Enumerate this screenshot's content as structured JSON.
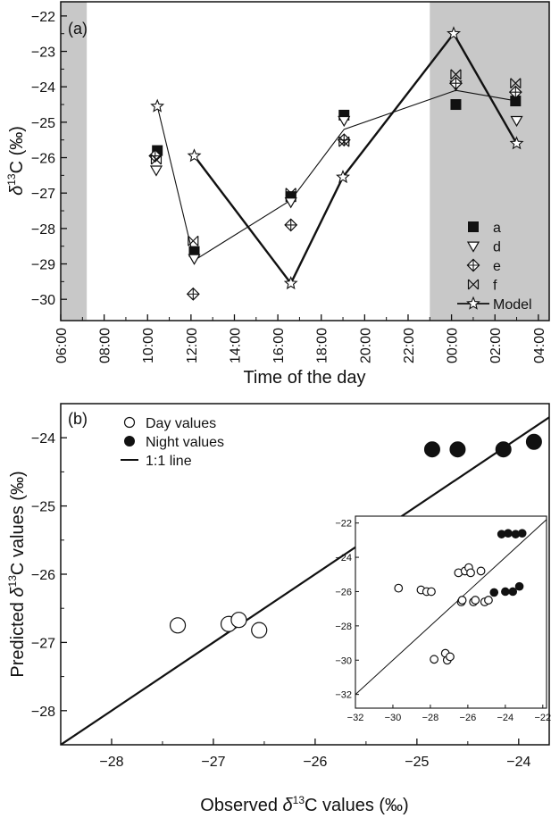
{
  "chart_data": [
    {
      "id": "a",
      "panel_label": "(a)",
      "type": "scatter",
      "xlabel": "Time of the day",
      "ylabel_prefix": "δ",
      "ylabel_sup": "13",
      "ylabel_suffix": "C (‰)",
      "x_unit": "hours",
      "xlim": [
        6,
        28.5
      ],
      "ylim": [
        -30.6,
        -21.6
      ],
      "x_ticks": [
        6,
        8,
        10,
        12,
        14,
        16,
        18,
        20,
        22,
        24,
        26,
        28
      ],
      "x_tick_labels": [
        "06:00",
        "08:00",
        "10:00",
        "12:00",
        "14:00",
        "16:00",
        "18:00",
        "20:00",
        "22:00",
        "00:00",
        "02:00",
        "04:00"
      ],
      "y_ticks": [
        -30,
        -29,
        -28,
        -27,
        -26,
        -25,
        -24,
        -23,
        -22
      ],
      "night_shading": [
        [
          6,
          7.2
        ],
        [
          23,
          28.5
        ]
      ],
      "night_color": "#c8c8c8",
      "series": [
        {
          "name": "a",
          "marker": "square-filled",
          "x": [
            10.45,
            12.15,
            16.6,
            19.05,
            24.2,
            26.95
          ],
          "y": [
            -25.8,
            -28.65,
            -27.1,
            -24.8,
            -24.5,
            -24.4
          ]
        },
        {
          "name": "d",
          "marker": "triangle-down-open",
          "x": [
            10.4,
            12.15,
            16.6,
            19.05,
            24.2,
            27.0
          ],
          "y": [
            -26.35,
            -28.85,
            -27.25,
            -24.95,
            -23.95,
            -24.95
          ]
        },
        {
          "name": "e",
          "marker": "diamond-cross",
          "x": [
            10.35,
            12.1,
            16.6,
            19.05,
            24.2,
            26.95
          ],
          "y": [
            -25.95,
            -29.85,
            -27.9,
            -25.5,
            -23.9,
            -24.15
          ]
        },
        {
          "name": "f",
          "marker": "bowtie-x",
          "x": [
            10.4,
            12.1,
            16.6,
            19.05,
            24.2,
            26.95
          ],
          "y": [
            -26.05,
            -28.35,
            -27.0,
            -25.55,
            -23.65,
            -23.9
          ]
        },
        {
          "name": "Model",
          "marker": "star-open",
          "x": [
            10.45,
            12.15,
            16.6,
            19.0,
            24.1,
            27.0
          ],
          "y": [
            -24.55,
            -25.95,
            -29.55,
            -26.55,
            -22.5,
            -25.6
          ]
        }
      ],
      "lines": [
        {
          "style": "thick",
          "x": [
            12.15,
            16.6
          ],
          "y": [
            -25.95,
            -29.55
          ]
        },
        {
          "style": "thick",
          "x": [
            16.6,
            19.0,
            24.1,
            27.0
          ],
          "y": [
            -29.55,
            -26.55,
            -22.5,
            -25.6
          ]
        },
        {
          "style": "thin",
          "x": [
            10.45,
            12.15,
            16.6,
            19.05,
            24.2,
            27.0
          ],
          "y": [
            -24.55,
            -28.9,
            -27.2,
            -25.2,
            -24.1,
            -24.4
          ]
        }
      ],
      "legend_position": "bottom-right"
    },
    {
      "id": "b",
      "panel_label": "(b)",
      "type": "scatter",
      "xlabel_prefix": "Observed ",
      "xlabel_delta": "δ",
      "xlabel_sup": "13",
      "xlabel_suffix": "C values (‰)",
      "ylabel_prefix": "Predicted ",
      "ylabel_delta": "δ",
      "ylabel_sup": "13",
      "ylabel_suffix": "C values (‰)",
      "xlim": [
        -28.5,
        -23.7
      ],
      "ylim": [
        -28.5,
        -23.5
      ],
      "x_ticks": [
        -28,
        -27,
        -26,
        -25,
        -24
      ],
      "y_ticks": [
        -28,
        -27,
        -26,
        -25,
        -24
      ],
      "series": [
        {
          "name": "Day values",
          "marker": "circle-open",
          "x": [
            -27.35,
            -26.85,
            -26.75,
            -26.55
          ],
          "y": [
            -26.75,
            -26.73,
            -26.67,
            -26.82
          ]
        },
        {
          "name": "Night values",
          "marker": "circle-filled",
          "x": [
            -24.85,
            -24.6,
            -24.15,
            -23.85
          ],
          "y": [
            -24.17,
            -24.17,
            -24.17,
            -24.06
          ]
        }
      ],
      "line_name": "1:1 line",
      "legend_position": "top-left",
      "inset": {
        "type": "scatter",
        "xlim": [
          -32,
          -21.8
        ],
        "ylim": [
          -32.8,
          -21.6
        ],
        "x_ticks": [
          -32,
          -30,
          -28,
          -26,
          -24,
          -22
        ],
        "y_ticks": [
          -32,
          -30,
          -28,
          -26,
          -24,
          -22
        ],
        "day": {
          "x": [
            -29.7,
            -28.5,
            -28.2,
            -27.95,
            -27.8,
            -27.2,
            -27.1,
            -26.95,
            -26.5,
            -26.35,
            -26.3,
            -26.15,
            -25.95,
            -25.85,
            -25.7,
            -25.6,
            -25.3,
            -25.1,
            -24.9
          ],
          "y": [
            -25.8,
            -25.9,
            -26.0,
            -26.0,
            -29.95,
            -29.6,
            -30.0,
            -29.8,
            -24.9,
            -26.6,
            -26.5,
            -24.8,
            -24.6,
            -24.9,
            -26.6,
            -26.5,
            -24.8,
            -26.6,
            -26.5
          ]
        },
        "night": {
          "x": [
            -24.6,
            -24.2,
            -24.0,
            -23.85,
            -23.6,
            -23.45,
            -23.25,
            -23.1
          ],
          "y": [
            -26.05,
            -22.65,
            -26.0,
            -22.6,
            -26.0,
            -22.65,
            -25.7,
            -22.6
          ]
        }
      }
    }
  ]
}
